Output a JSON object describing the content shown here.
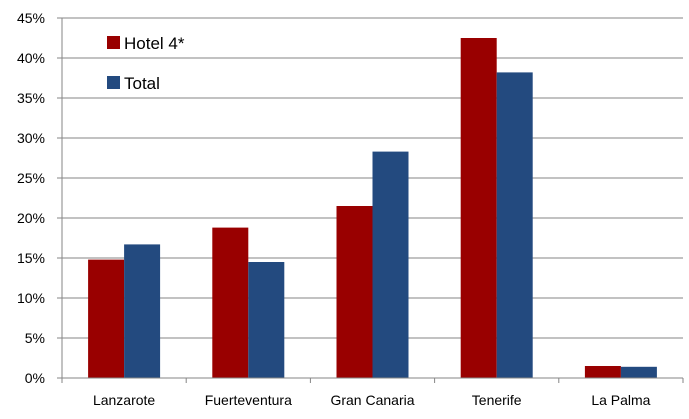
{
  "chart_data": {
    "type": "bar",
    "categories": [
      "Lanzarote",
      "Fuerteventura",
      "Gran Canaria",
      "Tenerife",
      "La Palma"
    ],
    "series": [
      {
        "name": "Hotel 4*",
        "values": [
          14.8,
          18.8,
          21.5,
          42.5,
          1.5
        ],
        "color": "#990000"
      },
      {
        "name": "Total",
        "values": [
          16.7,
          14.5,
          28.3,
          38.2,
          1.4
        ],
        "color": "#234a7f"
      }
    ],
    "yticks": [
      "0%",
      "5%",
      "10%",
      "15%",
      "20%",
      "25%",
      "30%",
      "35%",
      "40%",
      "45%"
    ],
    "ylim": [
      0,
      45
    ],
    "grid": true,
    "legend": "top-left",
    "title": "",
    "xlabel": "",
    "ylabel": ""
  }
}
